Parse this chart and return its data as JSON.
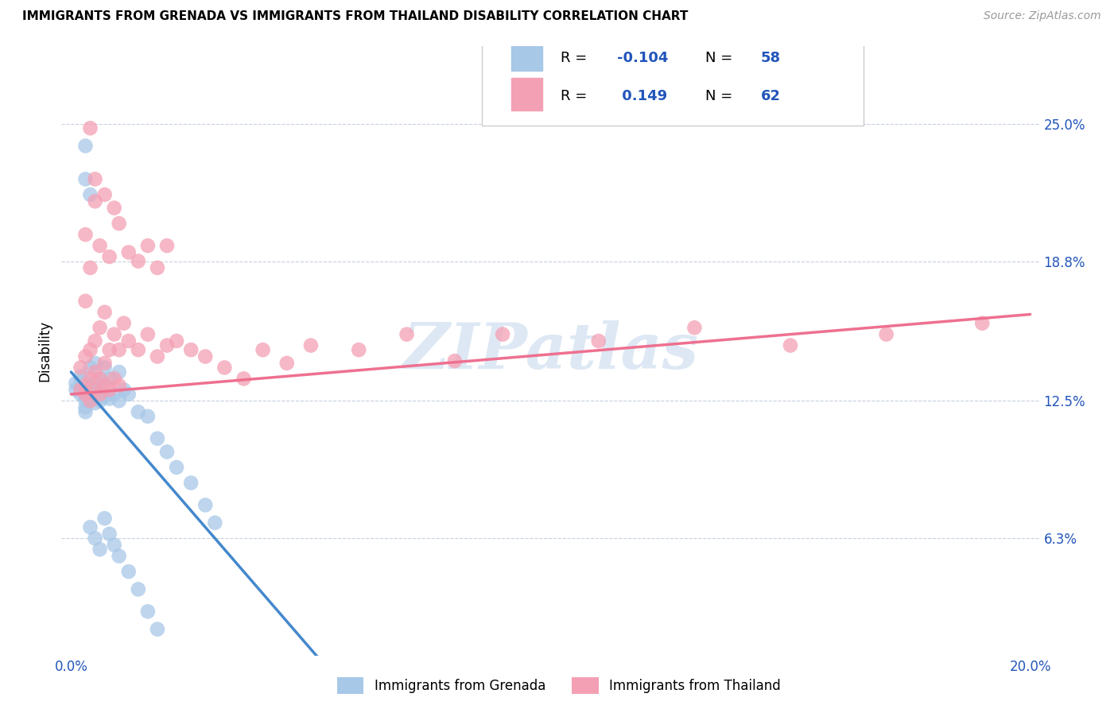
{
  "title": "IMMIGRANTS FROM GRENADA VS IMMIGRANTS FROM THAILAND DISABILITY CORRELATION CHART",
  "source": "Source: ZipAtlas.com",
  "ylabel": "Disability",
  "ytick_labels": [
    "6.3%",
    "12.5%",
    "18.8%",
    "25.0%"
  ],
  "ytick_values": [
    0.063,
    0.125,
    0.188,
    0.25
  ],
  "xlim": [
    -0.002,
    0.202
  ],
  "ylim": [
    0.01,
    0.285
  ],
  "color_grenada": "#a8c8e8",
  "color_thailand": "#f4a0b4",
  "color_grenada_line": "#4488cc",
  "color_thailand_line": "#ee7090",
  "color_blue_text": "#2255bb",
  "watermark_color": "#dde8f4",
  "grenada_x": [
    0.001,
    0.001,
    0.002,
    0.002,
    0.002,
    0.002,
    0.003,
    0.003,
    0.003,
    0.003,
    0.003,
    0.003,
    0.003,
    0.004,
    0.004,
    0.004,
    0.004,
    0.004,
    0.005,
    0.005,
    0.005,
    0.005,
    0.005,
    0.006,
    0.006,
    0.006,
    0.006,
    0.007,
    0.007,
    0.008,
    0.008,
    0.009,
    0.01,
    0.01,
    0.011,
    0.012,
    0.014,
    0.016,
    0.018,
    0.02,
    0.022,
    0.025,
    0.028,
    0.03,
    0.003,
    0.003,
    0.004,
    0.004,
    0.005,
    0.006,
    0.007,
    0.008,
    0.009,
    0.01,
    0.012,
    0.014,
    0.016,
    0.018
  ],
  "grenada_y": [
    0.13,
    0.133,
    0.128,
    0.131,
    0.134,
    0.136,
    0.125,
    0.127,
    0.129,
    0.131,
    0.133,
    0.12,
    0.122,
    0.126,
    0.128,
    0.13,
    0.132,
    0.14,
    0.124,
    0.127,
    0.13,
    0.133,
    0.142,
    0.125,
    0.128,
    0.131,
    0.135,
    0.127,
    0.14,
    0.126,
    0.135,
    0.128,
    0.125,
    0.138,
    0.13,
    0.128,
    0.12,
    0.118,
    0.108,
    0.102,
    0.095,
    0.088,
    0.078,
    0.07,
    0.24,
    0.225,
    0.218,
    0.068,
    0.063,
    0.058,
    0.072,
    0.065,
    0.06,
    0.055,
    0.048,
    0.04,
    0.03,
    0.022
  ],
  "thailand_x": [
    0.002,
    0.002,
    0.003,
    0.003,
    0.003,
    0.004,
    0.004,
    0.004,
    0.005,
    0.005,
    0.005,
    0.006,
    0.006,
    0.006,
    0.007,
    0.007,
    0.007,
    0.008,
    0.008,
    0.009,
    0.009,
    0.01,
    0.01,
    0.011,
    0.012,
    0.014,
    0.016,
    0.018,
    0.02,
    0.022,
    0.025,
    0.028,
    0.032,
    0.036,
    0.04,
    0.045,
    0.05,
    0.06,
    0.07,
    0.08,
    0.09,
    0.11,
    0.13,
    0.15,
    0.17,
    0.19,
    0.003,
    0.004,
    0.005,
    0.005,
    0.006,
    0.007,
    0.008,
    0.009,
    0.01,
    0.012,
    0.014,
    0.016,
    0.018,
    0.02,
    0.003,
    0.004
  ],
  "thailand_y": [
    0.13,
    0.14,
    0.128,
    0.132,
    0.145,
    0.125,
    0.135,
    0.148,
    0.13,
    0.138,
    0.152,
    0.128,
    0.135,
    0.158,
    0.132,
    0.142,
    0.165,
    0.13,
    0.148,
    0.135,
    0.155,
    0.132,
    0.148,
    0.16,
    0.152,
    0.148,
    0.155,
    0.145,
    0.15,
    0.152,
    0.148,
    0.145,
    0.14,
    0.135,
    0.148,
    0.142,
    0.15,
    0.148,
    0.155,
    0.143,
    0.155,
    0.152,
    0.158,
    0.15,
    0.155,
    0.16,
    0.2,
    0.248,
    0.225,
    0.215,
    0.195,
    0.218,
    0.19,
    0.212,
    0.205,
    0.192,
    0.188,
    0.195,
    0.185,
    0.195,
    0.17,
    0.185
  ],
  "grenada_line_solid_end": 0.055,
  "grenada_line_slope": -2.5,
  "grenada_line_intercept": 0.138,
  "thailand_line_slope": 0.18,
  "thailand_line_intercept": 0.128
}
